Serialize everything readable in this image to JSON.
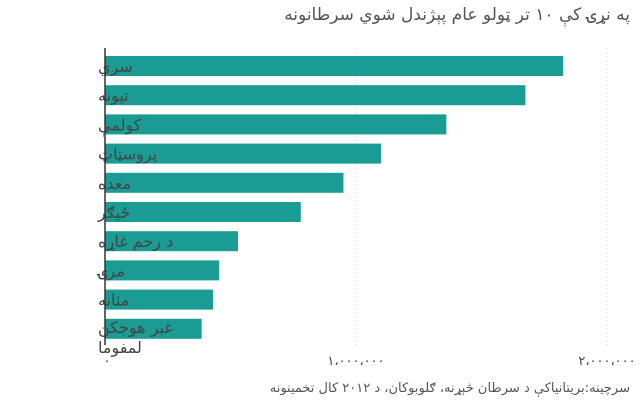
{
  "chart_data": {
    "type": "bar",
    "orientation": "horizontal",
    "title": "په نړۍ کې ۱۰ تر ټولو عام پېژندل شوي سرطانونه",
    "source": "سرچینه:بریتانیاکې د سرطان څېړنه، ګلوبوکان، د ۲۰۱۲ کال تخمینونه",
    "categories": [
      "سږي",
      "تیونه",
      "کولمې",
      "پروسټاټ",
      "معده",
      "ځیګر",
      "د رحم غاړه",
      "مرۍ",
      "مثانه",
      "غبر هوجکن لمفوما"
    ],
    "category_lines": [
      [
        "سږي"
      ],
      [
        "تیونه"
      ],
      [
        "کولمې"
      ],
      [
        "پروسټاټ"
      ],
      [
        "معده"
      ],
      [
        "ځیګر"
      ],
      [
        "د رحم غاړه"
      ],
      [
        "مرۍ"
      ],
      [
        "مثانه"
      ],
      [
        "غبر هوجکن",
        "لمفوما"
      ]
    ],
    "values": [
      1825000,
      1675000,
      1360000,
      1100000,
      950000,
      780000,
      530000,
      455000,
      430000,
      385000
    ],
    "xlim": [
      0,
      2000000
    ],
    "xticks": [
      0,
      1000000,
      2000000
    ],
    "xtick_labels": [
      "۰",
      "۱،۰۰۰،۰۰۰",
      "۲،۰۰۰،۰۰۰"
    ],
    "grid": true,
    "bar_color": "#1a9c95",
    "grid_color": "#cccccc"
  }
}
